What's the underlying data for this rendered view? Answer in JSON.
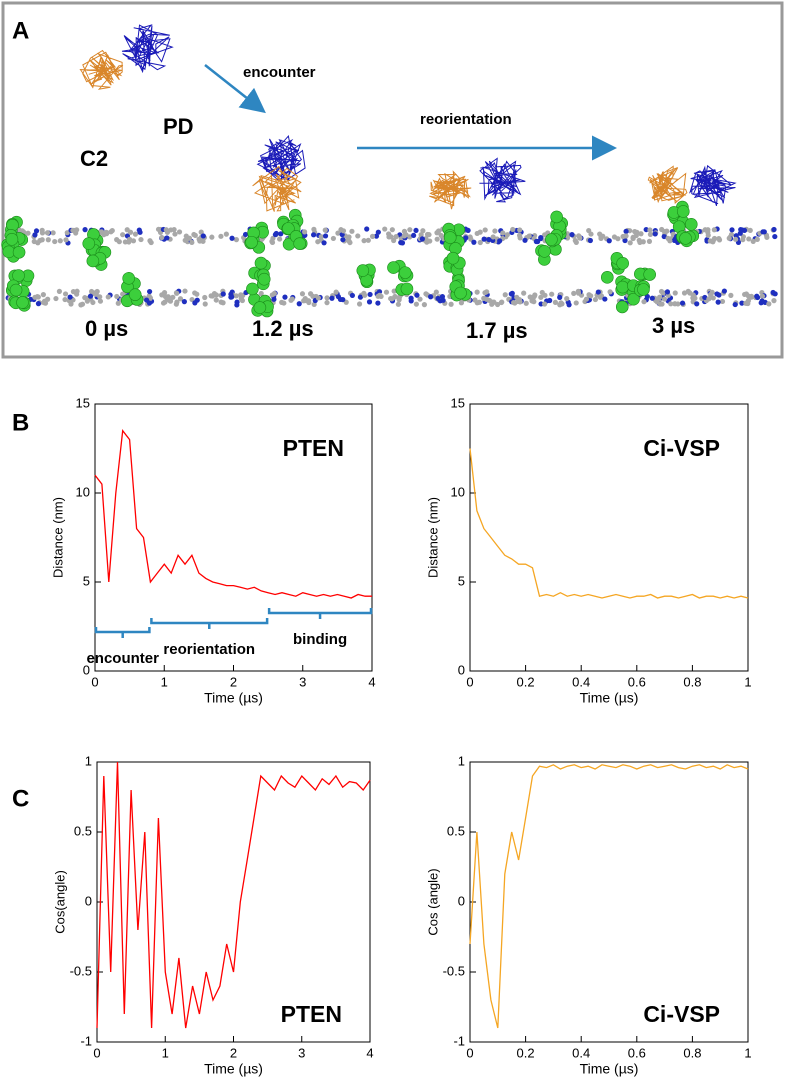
{
  "figure": {
    "panel_labels": [
      "A",
      "B",
      "C"
    ],
    "panel_a": {
      "protein_labels": [
        "C2",
        "PD"
      ],
      "arrow_labels": [
        "encounter",
        "reorientation"
      ],
      "time_labels": [
        "0 µs",
        "1.2 µs",
        "1.7 µs",
        "3 µs"
      ]
    }
  },
  "chart_data": [
    {
      "type": "line",
      "title": "PTEN",
      "x_label": "Time (µs)",
      "y_label": "Distance (nm)",
      "color": "#ff0000",
      "xlim": [
        0,
        4
      ],
      "xticks": [
        0,
        1,
        2,
        3,
        4
      ],
      "ylim": [
        0,
        15
      ],
      "yticks": [
        0,
        5,
        10,
        15
      ],
      "x": [
        0,
        0.1,
        0.2,
        0.3,
        0.4,
        0.5,
        0.6,
        0.7,
        0.8,
        0.9,
        1,
        1.1,
        1.2,
        1.3,
        1.4,
        1.5,
        1.6,
        1.7,
        1.8,
        1.9,
        2,
        2.1,
        2.2,
        2.3,
        2.4,
        2.5,
        2.6,
        2.7,
        2.8,
        2.9,
        3,
        3.1,
        3.2,
        3.3,
        3.4,
        3.5,
        3.6,
        3.7,
        3.8,
        3.9,
        4
      ],
      "values": [
        11,
        10.5,
        5,
        10,
        13.5,
        13,
        8,
        7.5,
        5,
        5.5,
        6,
        5.5,
        6.5,
        6,
        6.5,
        5.5,
        5.2,
        5,
        4.9,
        4.8,
        4.8,
        4.7,
        4.6,
        4.7,
        4.5,
        4.4,
        4.3,
        4.4,
        4.3,
        4.2,
        4.4,
        4.3,
        4.2,
        4.3,
        4.2,
        4.3,
        4.2,
        4.1,
        4.3,
        4.2,
        4.2
      ],
      "annotations": [
        {
          "text": "encounter",
          "span": [
            0,
            0.8
          ]
        },
        {
          "text": "reorientation",
          "span": [
            0.8,
            2.5
          ]
        },
        {
          "text": "binding",
          "span": [
            2.5,
            4
          ]
        }
      ]
    },
    {
      "type": "line",
      "title": "Ci-VSP",
      "x_label": "Time (µs)",
      "y_label": "Distance (nm)",
      "color": "#f5a623",
      "xlim": [
        0,
        1
      ],
      "xticks": [
        0,
        0.2,
        0.4,
        0.6,
        0.8,
        1
      ],
      "ylim": [
        0,
        15
      ],
      "yticks": [
        0,
        5,
        10,
        15
      ],
      "x": [
        0,
        0.025,
        0.05,
        0.075,
        0.1,
        0.125,
        0.15,
        0.175,
        0.2,
        0.225,
        0.25,
        0.275,
        0.3,
        0.325,
        0.35,
        0.375,
        0.4,
        0.425,
        0.45,
        0.475,
        0.5,
        0.525,
        0.55,
        0.575,
        0.6,
        0.625,
        0.65,
        0.675,
        0.7,
        0.725,
        0.75,
        0.775,
        0.8,
        0.825,
        0.85,
        0.875,
        0.9,
        0.925,
        0.95,
        0.975,
        1
      ],
      "values": [
        12.5,
        9,
        8,
        7.5,
        7,
        6.5,
        6.3,
        6,
        6,
        5.8,
        4.2,
        4.3,
        4.2,
        4.4,
        4.2,
        4.3,
        4.2,
        4.3,
        4.2,
        4.1,
        4.2,
        4.3,
        4.2,
        4.1,
        4.2,
        4.2,
        4.3,
        4.1,
        4.2,
        4.2,
        4.1,
        4.2,
        4.3,
        4.1,
        4.2,
        4.2,
        4.1,
        4.2,
        4.1,
        4.2,
        4.1
      ]
    },
    {
      "type": "line",
      "title": "PTEN",
      "x_label": "Time (µs)",
      "y_label": "Cos(angle)",
      "color": "#ff0000",
      "xlim": [
        0,
        4
      ],
      "xticks": [
        0,
        1,
        2,
        3,
        4
      ],
      "ylim": [
        -1,
        1
      ],
      "yticks": [
        -1,
        -0.5,
        0,
        0.5,
        1
      ],
      "x": [
        0,
        0.1,
        0.2,
        0.3,
        0.4,
        0.5,
        0.6,
        0.7,
        0.8,
        0.9,
        1,
        1.1,
        1.2,
        1.3,
        1.4,
        1.5,
        1.6,
        1.7,
        1.8,
        1.9,
        2,
        2.1,
        2.2,
        2.3,
        2.4,
        2.5,
        2.6,
        2.7,
        2.8,
        2.9,
        3,
        3.1,
        3.2,
        3.3,
        3.4,
        3.5,
        3.6,
        3.7,
        3.8,
        3.9,
        4
      ],
      "values": [
        -0.9,
        0.9,
        -0.5,
        1,
        -0.8,
        0.8,
        -0.2,
        0.5,
        -0.9,
        0.6,
        -0.5,
        -0.8,
        -0.4,
        -0.9,
        -0.6,
        -0.8,
        -0.5,
        -0.7,
        -0.6,
        -0.3,
        -0.5,
        0,
        0.3,
        0.6,
        0.9,
        0.85,
        0.8,
        0.9,
        0.85,
        0.82,
        0.9,
        0.85,
        0.8,
        0.88,
        0.84,
        0.9,
        0.82,
        0.86,
        0.85,
        0.8,
        0.87
      ]
    },
    {
      "type": "line",
      "title": "Ci-VSP",
      "x_label": "Time (µs)",
      "y_label": "Cos (angle)",
      "color": "#f5a623",
      "xlim": [
        0,
        1
      ],
      "xticks": [
        0,
        0.2,
        0.4,
        0.6,
        0.8,
        1
      ],
      "ylim": [
        -1,
        1
      ],
      "yticks": [
        -1,
        -0.5,
        0,
        0.5,
        1
      ],
      "x": [
        0,
        0.025,
        0.05,
        0.075,
        0.1,
        0.125,
        0.15,
        0.175,
        0.2,
        0.225,
        0.25,
        0.275,
        0.3,
        0.325,
        0.35,
        0.375,
        0.4,
        0.425,
        0.45,
        0.475,
        0.5,
        0.525,
        0.55,
        0.575,
        0.6,
        0.625,
        0.65,
        0.675,
        0.7,
        0.725,
        0.75,
        0.775,
        0.8,
        0.825,
        0.85,
        0.875,
        0.9,
        0.925,
        0.95,
        0.975,
        1
      ],
      "values": [
        -0.3,
        0.5,
        -0.3,
        -0.7,
        -0.9,
        0.2,
        0.5,
        0.3,
        0.6,
        0.9,
        0.97,
        0.96,
        0.98,
        0.95,
        0.97,
        0.98,
        0.96,
        0.97,
        0.95,
        0.98,
        0.97,
        0.96,
        0.98,
        0.97,
        0.95,
        0.97,
        0.98,
        0.96,
        0.97,
        0.98,
        0.96,
        0.95,
        0.97,
        0.98,
        0.96,
        0.97,
        0.95,
        0.98,
        0.96,
        0.97,
        0.95
      ]
    }
  ]
}
